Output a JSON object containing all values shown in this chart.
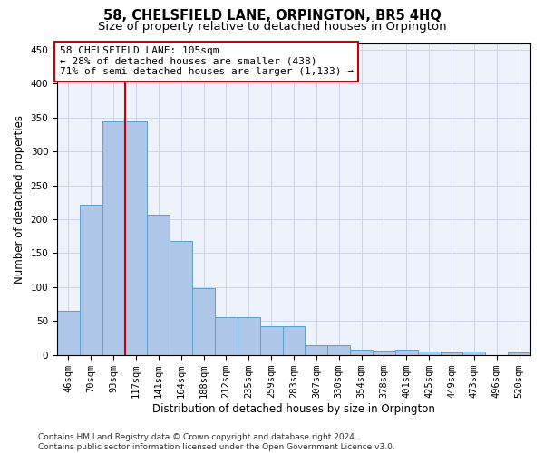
{
  "title": "58, CHELSFIELD LANE, ORPINGTON, BR5 4HQ",
  "subtitle": "Size of property relative to detached houses in Orpington",
  "xlabel": "Distribution of detached houses by size in Orpington",
  "ylabel": "Number of detached properties",
  "bar_labels": [
    "46sqm",
    "70sqm",
    "93sqm",
    "117sqm",
    "141sqm",
    "164sqm",
    "188sqm",
    "212sqm",
    "235sqm",
    "259sqm",
    "283sqm",
    "307sqm",
    "330sqm",
    "354sqm",
    "378sqm",
    "401sqm",
    "425sqm",
    "449sqm",
    "473sqm",
    "496sqm",
    "520sqm"
  ],
  "bar_heights": [
    65,
    222,
    345,
    344,
    207,
    168,
    99,
    56,
    56,
    42,
    42,
    14,
    14,
    8,
    6,
    7,
    5,
    4,
    5,
    0,
    4
  ],
  "bar_color": "#aec6e8",
  "bar_edge_color": "#5a9fd4",
  "background_color": "#eef2fb",
  "grid_color": "#c8cfe8",
  "vline_x_index": 2,
  "vline_color": "#cc0000",
  "annotation_line1": "58 CHELSFIELD LANE: 105sqm",
  "annotation_line2": "← 28% of detached houses are smaller (438)",
  "annotation_line3": "71% of semi-detached houses are larger (1,133) →",
  "annotation_box_color": "#ffffff",
  "annotation_box_edge": "#cc0000",
  "ylim": [
    0,
    460
  ],
  "yticks": [
    0,
    50,
    100,
    150,
    200,
    250,
    300,
    350,
    400,
    450
  ],
  "footer": "Contains HM Land Registry data © Crown copyright and database right 2024.\nContains public sector information licensed under the Open Government Licence v3.0.",
  "title_fontsize": 10.5,
  "subtitle_fontsize": 9.5,
  "axis_label_fontsize": 8.5,
  "tick_fontsize": 7.5,
  "annotation_fontsize": 8,
  "footer_fontsize": 6.5
}
